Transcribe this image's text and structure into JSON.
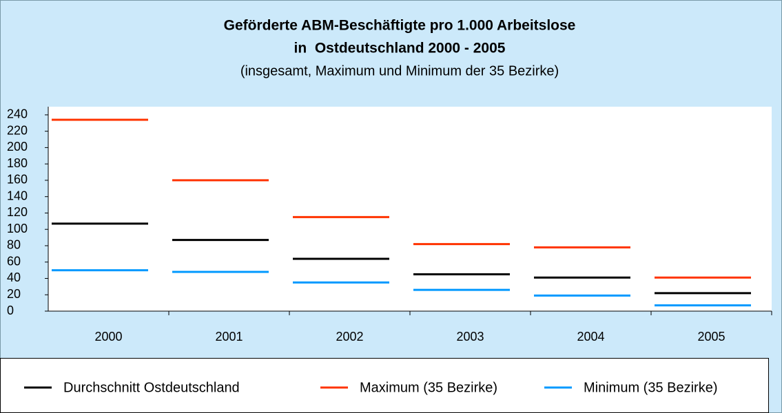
{
  "chart_data": {
    "type": "level",
    "title": "Geförderte ABM-Beschäftigte pro 1.000 Arbeitslose",
    "title_line2": "in  Ostdeutschland 2000 - 2005",
    "subtitle": "(insgesamt, Maximum und Minimum der 35 Bezirke)",
    "categories": [
      "2000",
      "2001",
      "2002",
      "2003",
      "2004",
      "2005"
    ],
    "series": [
      {
        "name": "Durchschnitt Ostdeutschland",
        "color": "#000000",
        "values": [
          107,
          87,
          64,
          45,
          41,
          22
        ]
      },
      {
        "name": "Maximum (35 Bezirke)",
        "color": "#ff3300",
        "values": [
          234,
          160,
          115,
          82,
          78,
          41
        ]
      },
      {
        "name": "Minimum (35 Bezirke)",
        "color": "#0099ff",
        "values": [
          50,
          48,
          35,
          26,
          19,
          7
        ]
      }
    ],
    "ylim": [
      0,
      250
    ],
    "yticks": [
      0,
      20,
      40,
      60,
      80,
      100,
      120,
      140,
      160,
      180,
      200,
      220,
      240
    ],
    "legend": "bottom"
  }
}
